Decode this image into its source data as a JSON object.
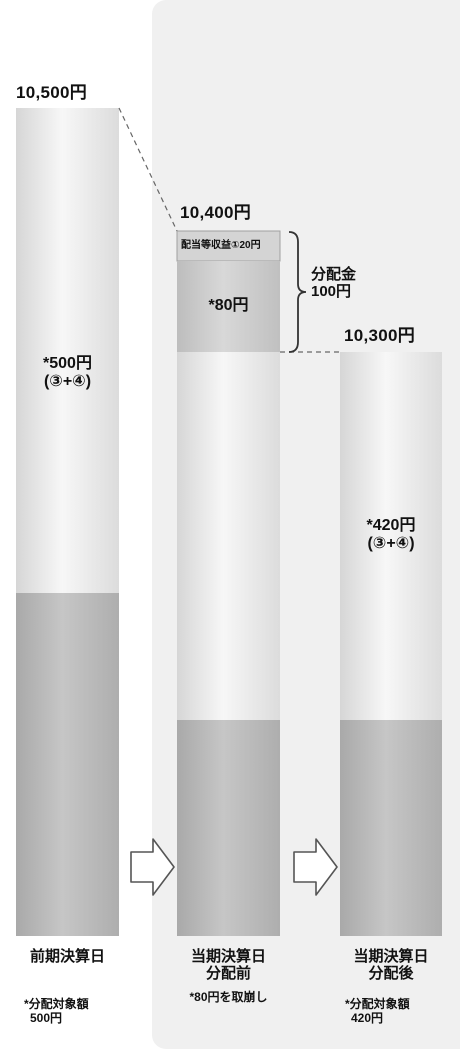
{
  "chart_data": {
    "type": "bar",
    "unit": "円",
    "bars": [
      {
        "category": "前期決算日",
        "total": 10500,
        "total_label": "10,500円",
        "segments": [
          {
            "label": "*500円",
            "sublabel": "(③+④)",
            "value": 500
          }
        ],
        "footnote_lines": [
          "*分配対象額",
          "500円"
        ]
      },
      {
        "category_lines": [
          "当期決算日",
          "分配前"
        ],
        "total": 10400,
        "total_label": "10,400円",
        "segments": [
          {
            "label": "配当等収益①20円",
            "value": 20
          },
          {
            "label": "*80円",
            "value": 80
          }
        ],
        "footnote_lines": [
          "*80円を取崩し"
        ]
      },
      {
        "category_lines": [
          "当期決算日",
          "分配後"
        ],
        "total": 10300,
        "total_label": "10,300円",
        "segments": [
          {
            "label": "*420円",
            "sublabel": "(③+④)",
            "value": 420
          }
        ],
        "footnote_lines": [
          "*分配対象額",
          "420円"
        ]
      }
    ],
    "distribution": {
      "label_lines": [
        "分配金",
        "100円"
      ],
      "value": 100
    }
  },
  "colors": {
    "panel": "#f0f0f0",
    "bar_light": "#ececec",
    "bar_dark": "#b8b8b8",
    "segment_mid": "#c9c9c9",
    "segment_top": "#d9d9d9"
  },
  "icons": [
    "arrow-right-icon",
    "arrow-right-icon",
    "brace-icon"
  ]
}
